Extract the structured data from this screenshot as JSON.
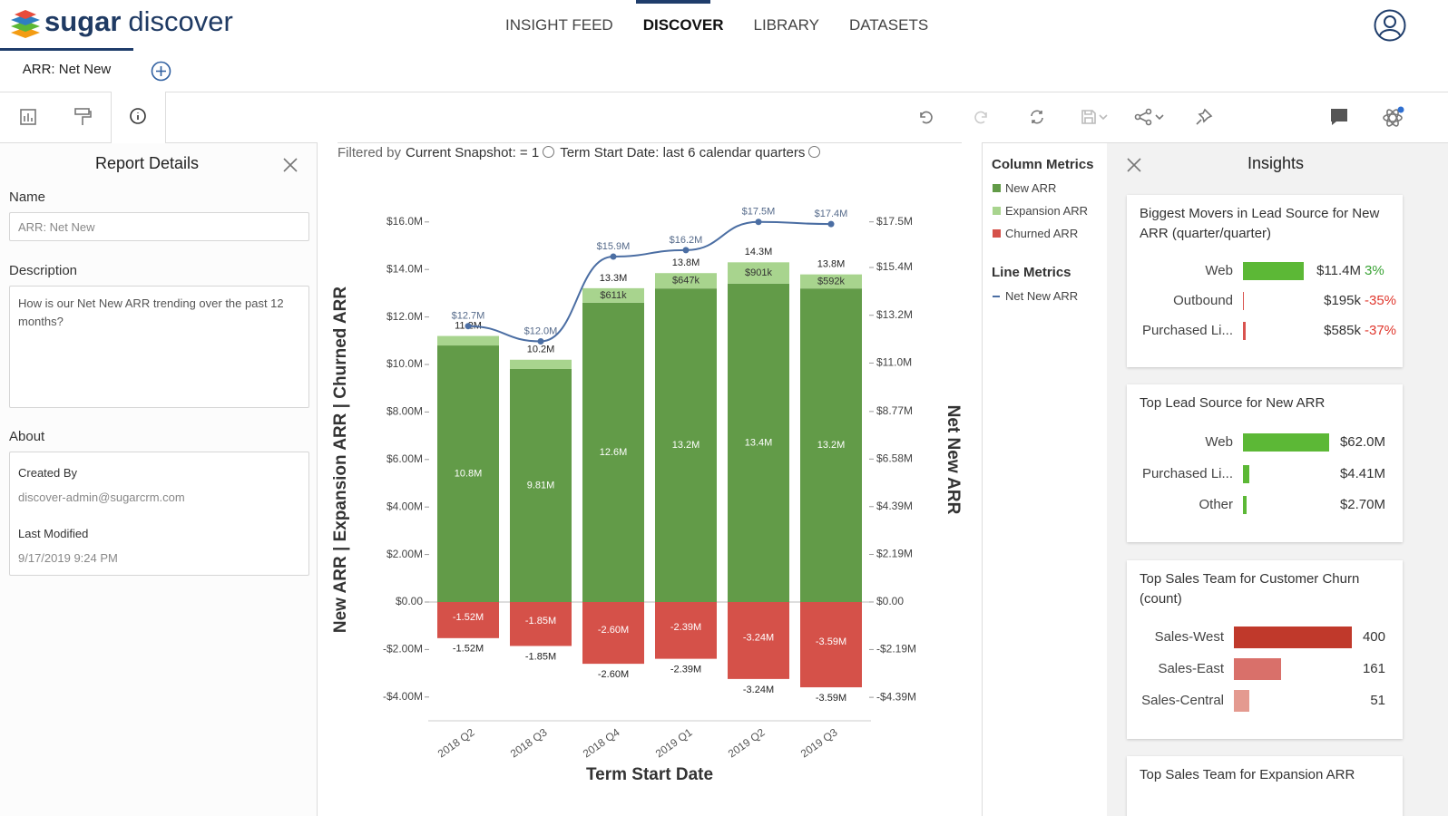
{
  "header": {
    "brand": {
      "name": "sugar",
      "product": "discover"
    },
    "nav": [
      "INSIGHT FEED",
      "DISCOVER",
      "LIBRARY",
      "DATASETS"
    ]
  },
  "tabs": [
    "ARR: Net New"
  ],
  "filter": {
    "label": "Filtered by",
    "items": [
      "Current Snapshot: = 1",
      "Term Start Date: last 6 calendar quarters"
    ]
  },
  "report_details": {
    "title": "Report Details",
    "name_label": "Name",
    "name_value": "ARR: Net New",
    "description_label": "Description",
    "description": "How is our Net New ARR trending over the past 12 months?",
    "about_label": "About",
    "created_by_label": "Created By",
    "created_by": "discover-admin@sugarcrm.com",
    "last_modified_label": "Last Modified",
    "last_modified": "9/17/2019 9:24 PM"
  },
  "legend": {
    "column_title": "Column Metrics",
    "line_title": "Line Metrics"
  },
  "insights": {
    "title": "Insights",
    "cards": [
      {
        "title": "Biggest Movers in Lead Source for New ARR (quarter/quarter)",
        "rows": [
          {
            "label": "Web",
            "value": 11400000,
            "value_label": "$11.4M",
            "change": 3,
            "change_label": "3%",
            "color": "#5cb836"
          },
          {
            "label": "Outbound",
            "value": 195000,
            "value_label": "$195k",
            "change": -35,
            "change_label": "-35%",
            "color": "#d9534f"
          },
          {
            "label": "Purchased Li...",
            "value": 585000,
            "value_label": "$585k",
            "change": -37,
            "change_label": "-37%",
            "color": "#d9534f"
          }
        ]
      },
      {
        "title": "Top Lead Source for New ARR",
        "rows": [
          {
            "label": "Web",
            "value": 62000000,
            "value_label": "$62.0M",
            "color": "#5cb836"
          },
          {
            "label": "Purchased Li...",
            "value": 4410000,
            "value_label": "$4.41M",
            "color": "#5cb836"
          },
          {
            "label": "Other",
            "value": 2700000,
            "value_label": "$2.70M",
            "color": "#5cb836"
          }
        ]
      },
      {
        "title": "Top Sales Team for Customer Churn (count)",
        "rows": [
          {
            "label": "Sales-West",
            "value": 400,
            "color": "#c0392b"
          },
          {
            "label": "Sales-East",
            "value": 161,
            "color": "#d9706a"
          },
          {
            "label": "Sales-Central",
            "value": 51,
            "color": "#e49a90"
          }
        ]
      },
      {
        "title": "Top Sales Team for Expansion ARR"
      }
    ]
  },
  "chart_data": {
    "type": "bar",
    "categories": [
      "2018 Q2",
      "2018 Q3",
      "2018 Q4",
      "2019 Q1",
      "2019 Q2",
      "2019 Q3"
    ],
    "x_label": "Term Start Date",
    "y_label": "New ARR | Expansion ARR | Churned ARR",
    "y2_label": "Net New ARR",
    "series": [
      {
        "name": "New ARR",
        "color": "#629b48",
        "values": [
          10800000,
          9810000,
          12600000,
          13200000,
          13400000,
          13200000
        ],
        "value_labels": [
          "10.8M",
          "9.81M",
          "12.6M",
          "13.2M",
          "13.4M",
          "13.2M"
        ]
      },
      {
        "name": "Expansion ARR",
        "color": "#a8d48e",
        "values": [
          400000,
          390000,
          611000,
          647000,
          901000,
          592000
        ],
        "value_labels": [
          null,
          null,
          "$611k",
          "$647k",
          "$901k",
          "$592k"
        ]
      },
      {
        "name": "Churned ARR",
        "color": "#d55149",
        "values": [
          -1520000,
          -1850000,
          -2600000,
          -2390000,
          -3240000,
          -3590000
        ],
        "value_labels": [
          "-1.52M",
          "-1.85M",
          "-2.60M",
          "-2.39M",
          "-3.24M",
          "-3.59M"
        ]
      },
      {
        "name": "Net New ARR",
        "type": "line",
        "axis": "y2",
        "color": "#4b6ea3",
        "values": [
          12700000,
          12000000,
          15900000,
          16200000,
          17500000,
          17400000
        ],
        "value_labels": [
          "$12.7M",
          "$12.0M",
          "$15.9M",
          "$16.2M",
          "$17.5M",
          "$17.4M"
        ]
      }
    ],
    "stack_total_labels": [
      "11.2M",
      "10.2M",
      "13.3M",
      "13.8M",
      "14.3M",
      "13.8M"
    ],
    "ylim": [
      -5000000,
      17000000
    ],
    "yticks": [
      {
        "value": -4000000,
        "label": "-$4.00M"
      },
      {
        "value": -2000000,
        "label": "-$2.00M"
      },
      {
        "value": 0,
        "label": "$0.00"
      },
      {
        "value": 2000000,
        "label": "$2.00M"
      },
      {
        "value": 4000000,
        "label": "$4.00M"
      },
      {
        "value": 6000000,
        "label": "$6.00M"
      },
      {
        "value": 8000000,
        "label": "$8.00M"
      },
      {
        "value": 10000000,
        "label": "$10.0M"
      },
      {
        "value": 12000000,
        "label": "$12.0M"
      },
      {
        "value": 14000000,
        "label": "$14.0M"
      },
      {
        "value": 16000000,
        "label": "$16.0M"
      }
    ],
    "y2lim": [
      -5470000,
      18590000
    ],
    "y2ticks": [
      {
        "value": -4390000,
        "label": "-$4.39M"
      },
      {
        "value": -2190000,
        "label": "-$2.19M"
      },
      {
        "value": 0,
        "label": "$0.00"
      },
      {
        "value": 2190000,
        "label": "$2.19M"
      },
      {
        "value": 4390000,
        "label": "$4.39M"
      },
      {
        "value": 6580000,
        "label": "$6.58M"
      },
      {
        "value": 8770000,
        "label": "$8.77M"
      },
      {
        "value": 11000000,
        "label": "$11.0M"
      },
      {
        "value": 13200000,
        "label": "$13.2M"
      },
      {
        "value": 15400000,
        "label": "$15.4M"
      },
      {
        "value": 17500000,
        "label": "$17.5M"
      }
    ],
    "grid": false
  }
}
